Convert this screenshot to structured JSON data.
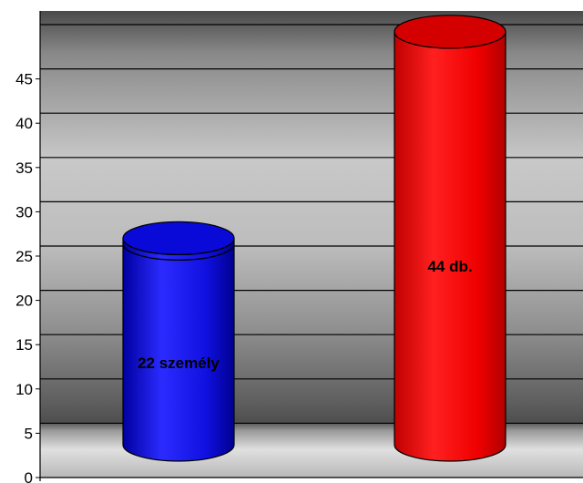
{
  "chart_data": {
    "type": "bar",
    "style": "3d-cylinder",
    "categories": [
      "",
      ""
    ],
    "values": [
      22,
      44
    ],
    "data_labels": [
      "22 személy",
      "44 db."
    ],
    "colors": [
      "#1a1aff",
      "#ff0f0f"
    ],
    "yticks": [
      "0",
      "5",
      "10",
      "15",
      "20",
      "25",
      "30",
      "35",
      "40",
      "45"
    ],
    "ylim": [
      0,
      45
    ],
    "grid": true,
    "legend": "none",
    "title": "",
    "xlabel": "",
    "ylabel": ""
  }
}
